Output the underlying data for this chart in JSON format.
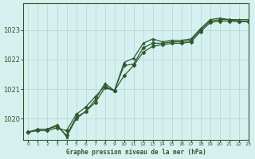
{
  "background_color": "#d6f0f0",
  "plot_bg_color": "#d6f0f0",
  "grid_color": "#b0d8cc",
  "line_color": "#2d5a2d",
  "title": "Graphe pression niveau de la mer (hPa)",
  "xlim": [
    -0.5,
    23
  ],
  "ylim": [
    1019.3,
    1023.9
  ],
  "yticks": [
    1020,
    1021,
    1022,
    1023
  ],
  "xticks": [
    0,
    1,
    2,
    3,
    4,
    5,
    6,
    7,
    8,
    9,
    10,
    11,
    12,
    13,
    14,
    15,
    16,
    17,
    18,
    19,
    20,
    21,
    22,
    23
  ],
  "series": [
    {
      "x": [
        0,
        1,
        2,
        3,
        4,
        5,
        6,
        7,
        8,
        9,
        10,
        11,
        12,
        13,
        14,
        15,
        16,
        17,
        18,
        19,
        20,
        21,
        22,
        23
      ],
      "y": [
        1019.55,
        1019.65,
        1019.65,
        1019.75,
        1019.45,
        1020.05,
        1020.25,
        1020.55,
        1021.05,
        1020.95,
        1021.8,
        1021.85,
        1022.4,
        1022.55,
        1022.55,
        1022.6,
        1022.6,
        1022.65,
        1023.0,
        1023.3,
        1023.35,
        1023.35,
        1023.3,
        1023.3
      ],
      "marker": "D"
    },
    {
      "x": [
        0,
        1,
        2,
        3,
        4,
        5,
        6,
        7,
        8,
        9,
        10,
        11,
        12,
        13,
        14,
        15,
        16,
        17,
        18,
        19,
        20,
        21,
        22,
        23
      ],
      "y": [
        1019.55,
        1019.65,
        1019.65,
        1019.8,
        1019.4,
        1020.0,
        1020.25,
        1020.65,
        1021.2,
        1020.95,
        1021.9,
        1022.05,
        1022.55,
        1022.7,
        1022.6,
        1022.65,
        1022.65,
        1022.7,
        1023.05,
        1023.35,
        1023.4,
        1023.35,
        1023.35,
        1023.35
      ],
      "marker": "^"
    },
    {
      "x": [
        0,
        1,
        2,
        3,
        4,
        5,
        6,
        7,
        8,
        9,
        10,
        11,
        12,
        13,
        14,
        15,
        16,
        17,
        18,
        19,
        20,
        21,
        22,
        23
      ],
      "y": [
        1019.55,
        1019.6,
        1019.6,
        1019.7,
        1019.6,
        1020.15,
        1020.4,
        1020.75,
        1021.1,
        1020.95,
        1021.45,
        1021.8,
        1022.25,
        1022.45,
        1022.5,
        1022.55,
        1022.55,
        1022.6,
        1022.95,
        1023.25,
        1023.3,
        1023.3,
        1023.28,
        1023.28
      ],
      "marker": "D"
    }
  ],
  "linewidth": 0.9
}
